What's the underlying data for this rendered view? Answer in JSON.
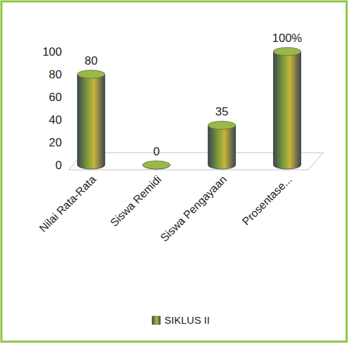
{
  "chart_data": {
    "type": "bar",
    "categories": [
      "Nilai Rata-Rata",
      "Siswa Remidi",
      "Siswa Pengayaan",
      "Prosentase..."
    ],
    "series": [
      {
        "name": "SIKLUS II",
        "color": "#7a9a3a",
        "values": [
          80,
          0,
          35,
          100
        ]
      }
    ],
    "value_labels": [
      "80",
      "0",
      "35",
      "100%"
    ],
    "ylim": [
      0,
      100
    ],
    "yticks": [
      0,
      20,
      40,
      60,
      80,
      100
    ],
    "grid": false,
    "legend": "bottom",
    "data_labels": true
  }
}
